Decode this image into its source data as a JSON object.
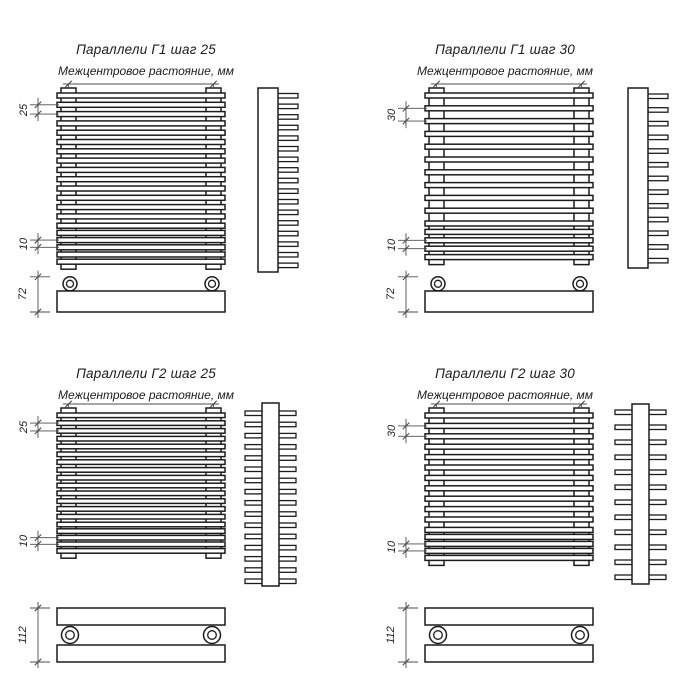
{
  "colors": {
    "background": "#ffffff",
    "line": "#1c1c1c",
    "dim_line": "#4d4d4d",
    "text": "#1c1c1c"
  },
  "panels": [
    {
      "id": "g1-step-25",
      "title": "Параллели Г1 шаг 25",
      "subtitle": "Межцентровое растояние, мм",
      "step_label": "25",
      "bottom_gap_label": "10",
      "depth_label": "72",
      "rows": 1,
      "front_tube_count": 20,
      "side_tube_count": 17
    },
    {
      "id": "g1-step-30",
      "title": "Параллели Г1 шаг 30",
      "subtitle": "Межцентровое растояние, мм",
      "step_label": "30",
      "bottom_gap_label": "10",
      "depth_label": "72",
      "rows": 1,
      "front_tube_count": 15,
      "side_tube_count": 13
    },
    {
      "id": "g2-step-25",
      "title": "Параллели Г2 шаг 25",
      "subtitle": "Межцентровое растояние, мм",
      "step_label": "25",
      "bottom_gap_label": "10",
      "depth_label": "112",
      "rows": 2,
      "front_tube_count": 19,
      "side_tube_count": 16
    },
    {
      "id": "g2-step-30",
      "title": "Параллели Г2 шаг 30",
      "subtitle": "Межцентровое растояние, мм",
      "step_label": "30",
      "bottom_gap_label": "10",
      "depth_label": "112",
      "rows": 2,
      "front_tube_count": 16,
      "side_tube_count": 12
    }
  ]
}
